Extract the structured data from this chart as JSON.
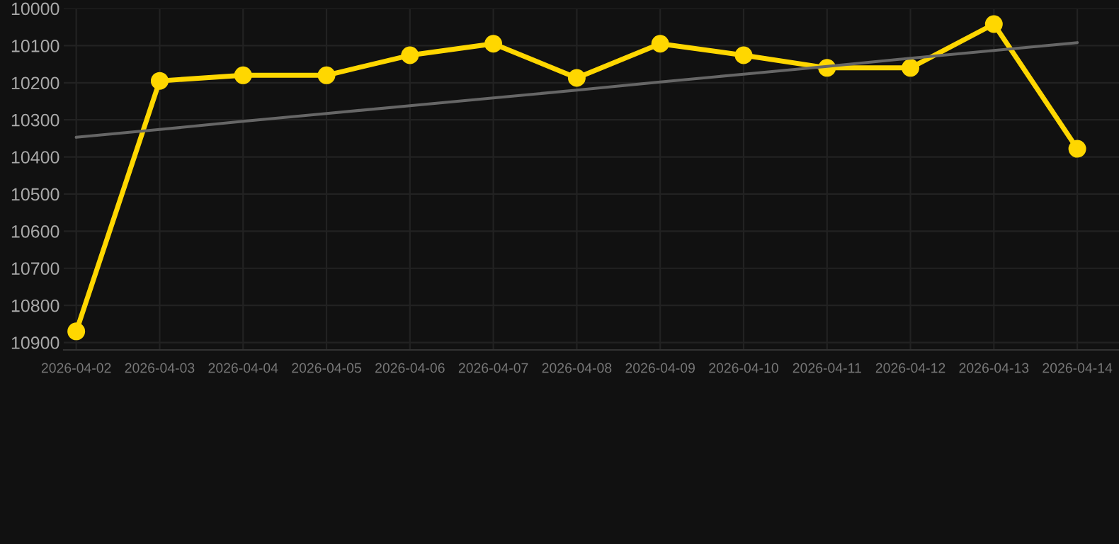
{
  "chart_data": {
    "type": "line",
    "categories": [
      "2026-04-02",
      "2026-04-03",
      "2026-04-04",
      "2026-04-05",
      "2026-04-06",
      "2026-04-07",
      "2026-04-08",
      "2026-04-09",
      "2026-04-10",
      "2026-04-11",
      "2026-04-12",
      "2026-04-13",
      "2026-04-14"
    ],
    "series": [
      {
        "color": "#ffd700",
        "values": [
          10870,
          10195,
          10180,
          10180,
          10126,
          10095,
          10187,
          10095,
          10126,
          10160,
          10160,
          10042,
          10378
        ],
        "marker": "circle"
      },
      {
        "type": "line",
        "color": "#666666",
        "values": [
          10347,
          10326,
          10304,
          10283,
          10262,
          10241,
          10220,
          10198,
          10177,
          10156,
          10134,
          10113,
          10092
        ],
        "marker": "none"
      }
    ],
    "ylim": [
      10920,
      10000
    ],
    "yticks": [
      10000,
      10100,
      10200,
      10300,
      10400,
      10500,
      10600,
      10700,
      10800,
      10900
    ],
    "grid": true,
    "line_style": "solid"
  }
}
